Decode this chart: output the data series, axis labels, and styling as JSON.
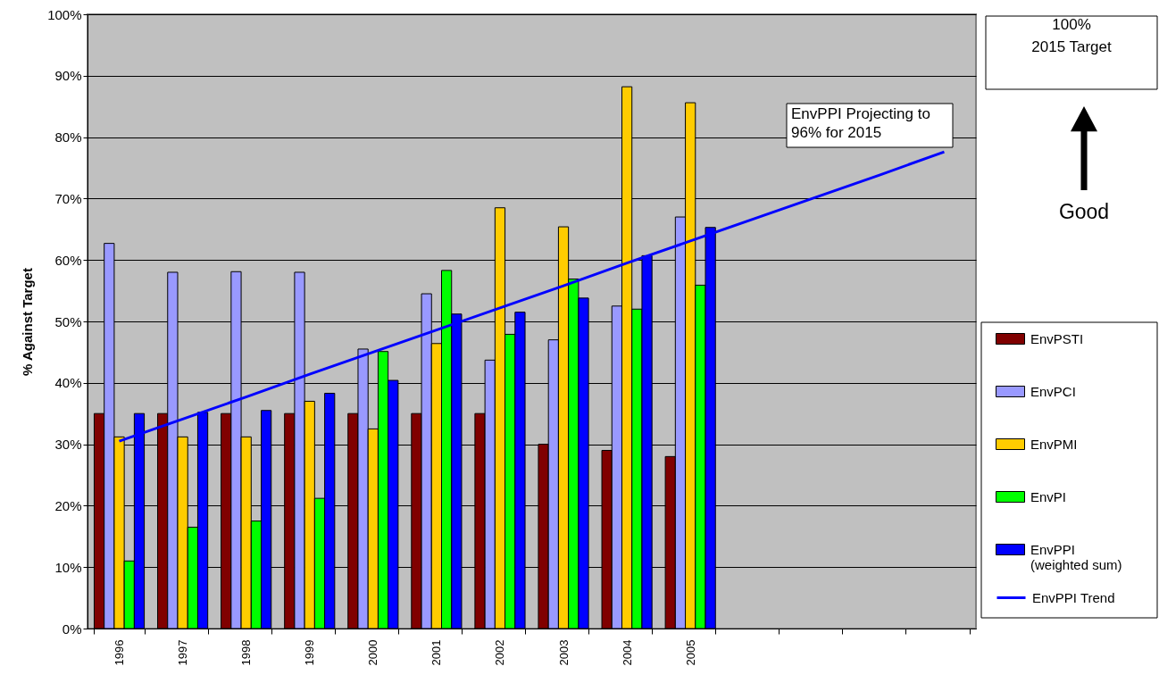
{
  "chart_data": {
    "type": "bar",
    "ylabel": "% Against Target",
    "categories": [
      "1996",
      "1997",
      "1998",
      "1999",
      "2000",
      "2001",
      "2002",
      "2003",
      "2004",
      "2005",
      null,
      null,
      null,
      null
    ],
    "series": [
      {
        "name": "EnvPSTI",
        "color": "#800000",
        "values": [
          35,
          35,
          35,
          35,
          35,
          35,
          35,
          30,
          29,
          28,
          null,
          null,
          null,
          null
        ]
      },
      {
        "name": "EnvPCI",
        "color": "#9999ff",
        "values": [
          62.7,
          58,
          58.1,
          58,
          45.5,
          54.5,
          43.7,
          47,
          52.5,
          67,
          null,
          null,
          null,
          null
        ]
      },
      {
        "name": "EnvPMI",
        "color": "#ffcc00",
        "values": [
          31.2,
          31.2,
          31.2,
          37,
          32.5,
          46.4,
          68.5,
          65.4,
          88.2,
          85.6,
          null,
          null,
          null,
          null
        ]
      },
      {
        "name": "EnvPI",
        "color": "#00ff00",
        "values": [
          11,
          16.5,
          17.5,
          21.2,
          45.1,
          58.3,
          47.9,
          56.9,
          52,
          55.9,
          null,
          null,
          null,
          null
        ]
      },
      {
        "name": "EnvPPI\n(weighted sum)",
        "color": "#0000ff",
        "values": [
          35,
          35.2,
          35.5,
          38.3,
          40.4,
          51.2,
          51.5,
          53.8,
          60.7,
          65.3,
          null,
          null,
          null,
          null
        ]
      },
      {
        "name": "EnvPPI Trend",
        "type": "line",
        "color": "#0000ff",
        "values": [
          30.5,
          34.1,
          37.7,
          41.4,
          45,
          48.6,
          52.2,
          55.8,
          59.5,
          63.1,
          66.7,
          70.3,
          73.9,
          77.6
        ]
      }
    ],
    "ylim": [
      0,
      100
    ],
    "yticks": [
      {
        "value": 0,
        "label": "0%"
      },
      {
        "value": 10,
        "label": "10%"
      },
      {
        "value": 20,
        "label": "20%"
      },
      {
        "value": 30,
        "label": "30%"
      },
      {
        "value": 40,
        "label": "40%"
      },
      {
        "value": 50,
        "label": "50%"
      },
      {
        "value": 60,
        "label": "60%"
      },
      {
        "value": 70,
        "label": "70%"
      },
      {
        "value": 80,
        "label": "80%"
      },
      {
        "value": 90,
        "label": "90%"
      },
      {
        "value": 100,
        "label": "100%"
      }
    ],
    "grid": "y",
    "legend": "bottom right",
    "annotations": [
      "EnvPPI Projecting to\n96% for 2015",
      "100%\n2015 Target",
      "Good"
    ]
  }
}
